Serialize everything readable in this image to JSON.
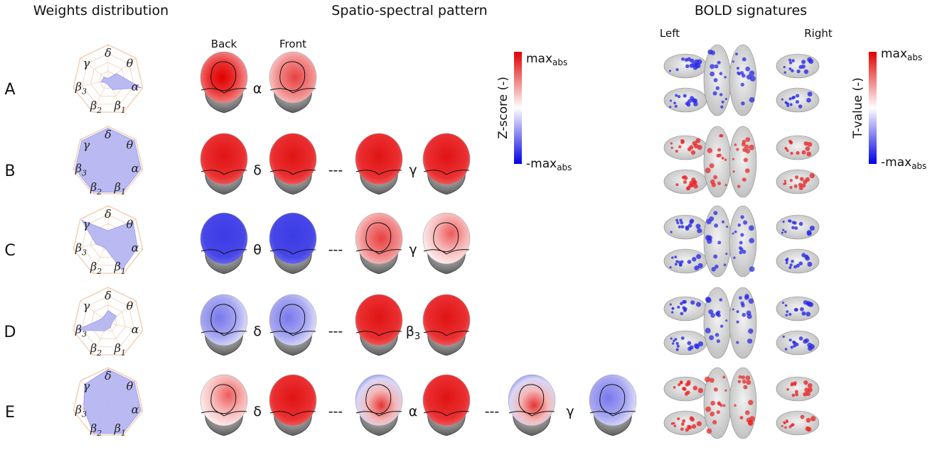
{
  "headers": {
    "weights": "Weights distribution",
    "spatio": "Spatio-spectral pattern",
    "bold": "BOLD signatures"
  },
  "view_labels": {
    "back": "Back",
    "front": "Front"
  },
  "hemisphere_labels": {
    "left": "Left",
    "right": "Right"
  },
  "radar_axes": [
    {
      "key": "delta",
      "label": "δ",
      "sub": ""
    },
    {
      "key": "theta",
      "label": "θ",
      "sub": ""
    },
    {
      "key": "alpha",
      "label": "α",
      "sub": ""
    },
    {
      "key": "beta1",
      "label": "β",
      "sub": "1"
    },
    {
      "key": "beta2",
      "label": "β",
      "sub": "2"
    },
    {
      "key": "beta3",
      "label": "β",
      "sub": "3"
    },
    {
      "key": "gamma",
      "label": "γ",
      "sub": ""
    }
  ],
  "colors": {
    "radar_fill": "#b3b3f2",
    "radar_grid": "#f2cdb0",
    "positive": "#e8282a",
    "negative": "#2a2ae6"
  },
  "rows": [
    {
      "label": "A",
      "weights": [
        0.05,
        0.3,
        0.95,
        0.3,
        0.1,
        0.2,
        0.15
      ],
      "heads": [
        {
          "band": "α",
          "sub": "",
          "back": "strong-red",
          "front": "mixed-red"
        }
      ],
      "bold": "blue"
    },
    {
      "label": "B",
      "weights": [
        0.95,
        0.95,
        0.95,
        0.95,
        0.95,
        0.95,
        0.95
      ],
      "heads": [
        {
          "band": "δ",
          "sub": "",
          "back": "red",
          "front": "red"
        },
        {
          "band": "γ",
          "sub": "",
          "back": "red",
          "front": "red"
        }
      ],
      "bold": "red"
    },
    {
      "label": "C",
      "weights": [
        0.3,
        0.9,
        0.85,
        0.9,
        0.2,
        0.35,
        0.95
      ],
      "heads": [
        {
          "band": "θ",
          "sub": "",
          "back": "blue",
          "front": "blue"
        },
        {
          "band": "γ",
          "sub": "",
          "back": "mixed-red",
          "front": "pale-red"
        }
      ],
      "bold": "blue"
    },
    {
      "label": "D",
      "weights": [
        0.35,
        0.3,
        0.1,
        0.15,
        0.25,
        0.9,
        0.2
      ],
      "heads": [
        {
          "band": "δ",
          "sub": "",
          "back": "pale-blue",
          "front": "pale-blue"
        },
        {
          "band": "β",
          "sub": "3",
          "back": "red",
          "front": "red"
        }
      ],
      "bold": "blue"
    },
    {
      "label": "E",
      "weights": [
        0.95,
        0.95,
        0.95,
        0.95,
        0.95,
        0.7,
        0.85
      ],
      "heads": [
        {
          "band": "δ",
          "sub": "",
          "back": "pale-red",
          "front": "red"
        },
        {
          "band": "α",
          "sub": "",
          "back": "pale-mix",
          "front": "red"
        },
        {
          "band": "γ",
          "sub": "",
          "back": "pale-mix",
          "front": "pale-blue"
        }
      ],
      "bold": "red"
    }
  ],
  "separator": "---",
  "colorbar_eeg": {
    "label": "Z-score (-)",
    "max": "max",
    "min": "-max",
    "sub": "abs"
  },
  "colorbar_bold": {
    "label": "T-value (-)",
    "max": "max",
    "min": "-max",
    "sub": "abs"
  }
}
